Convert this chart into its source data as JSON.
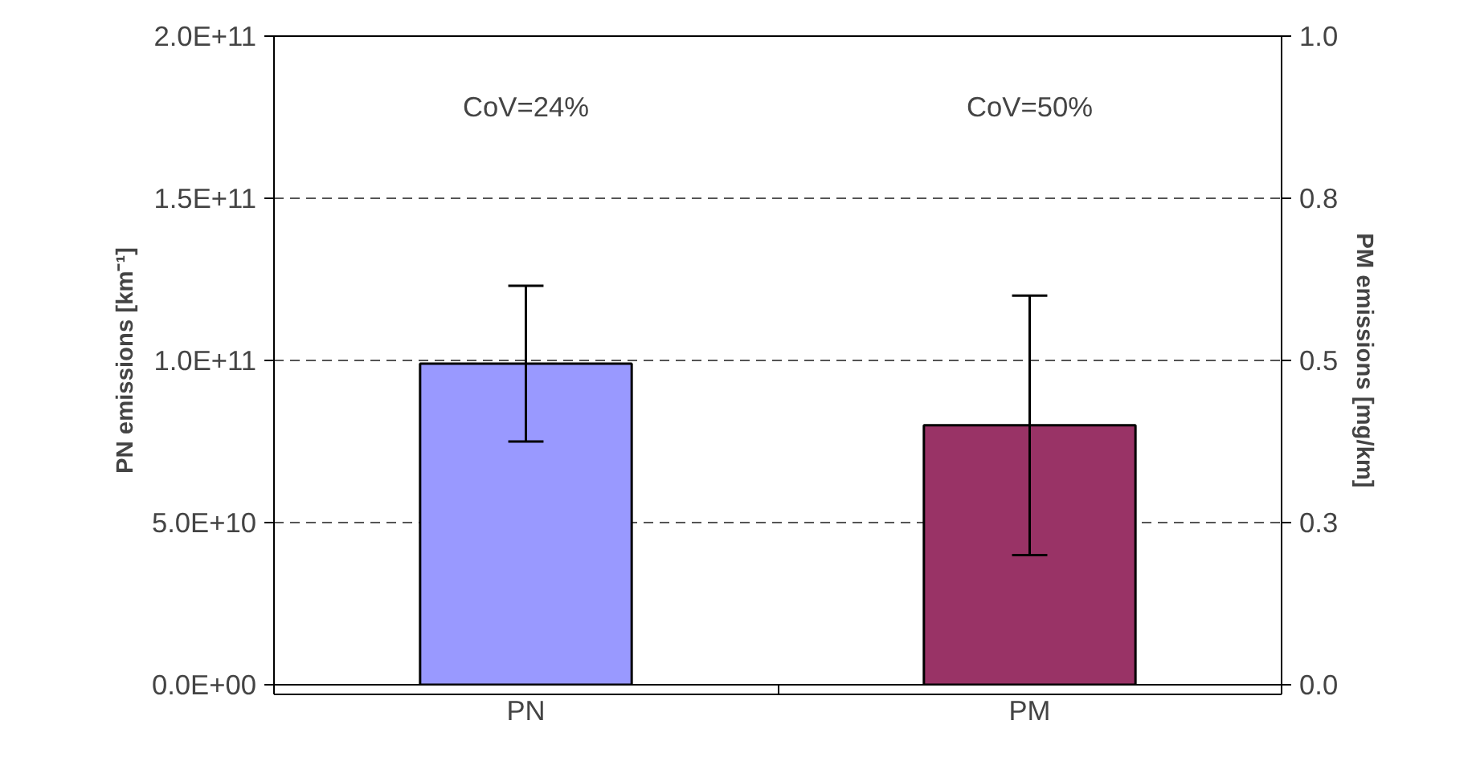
{
  "chart_data": {
    "type": "bar",
    "categories": [
      "PN",
      "PM"
    ],
    "ylabel": "PN emissions [km⁻¹]",
    "y2label": "PM emissions [mg/km]",
    "series": [
      {
        "color": "#9999ff",
        "values": [
          99000000000.0,
          null
        ],
        "errors": [
          [
            75000000000.0,
            123000000000.0
          ],
          null
        ]
      },
      {
        "color": "#993366",
        "values": [
          null,
          0.4
        ],
        "errors": [
          null,
          [
            0.2,
            0.6
          ]
        ],
        "axis": "y2"
      }
    ],
    "ylim": [
      0,
      200000000000.0
    ],
    "yticks": [
      {
        "value": 0,
        "label": "0.0E+00"
      },
      {
        "value": 50000000000.0,
        "label": "5.0E+10"
      },
      {
        "value": 100000000000.0,
        "label": "1.0E+11"
      },
      {
        "value": 150000000000.0,
        "label": "1.5E+11"
      },
      {
        "value": 200000000000.0,
        "label": "2.0E+11"
      }
    ],
    "y2lim": [
      0,
      1
    ],
    "y2ticks": [
      {
        "value": 0,
        "label": "0.0"
      },
      {
        "value": 0.25,
        "label": "0.3"
      },
      {
        "value": 0.5,
        "label": "0.5"
      },
      {
        "value": 0.75,
        "label": "0.8"
      },
      {
        "value": 1,
        "label": "1.0"
      }
    ],
    "annotations": [
      "CoV=24%",
      "CoV=50%"
    ],
    "grid": "y"
  }
}
